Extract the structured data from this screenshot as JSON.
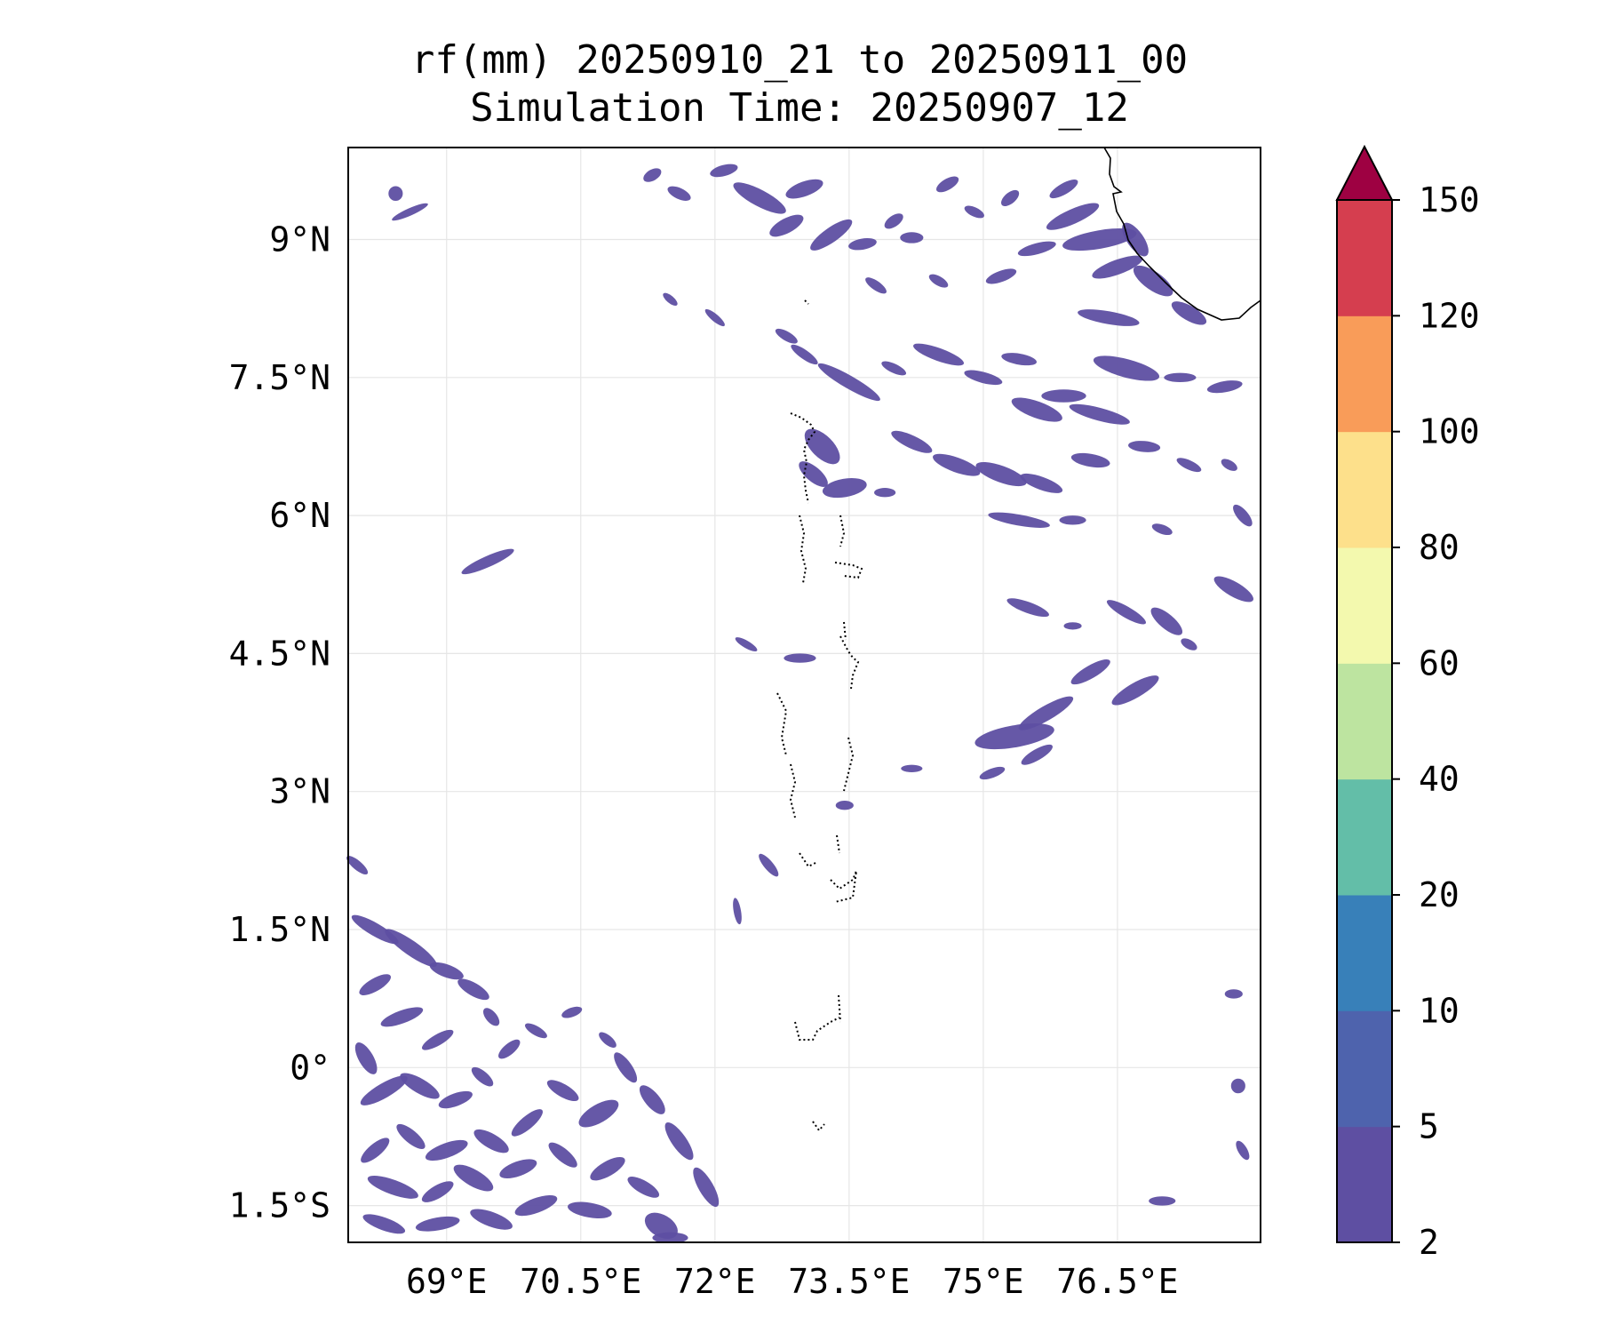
{
  "title": {
    "line1": "rf(mm) 20250910_21 to 20250911_00",
    "line2": "Simulation Time: 20250907_12"
  },
  "map": {
    "lon_range": [
      67.9,
      78.1
    ],
    "lat_range": [
      -1.9,
      10.0
    ],
    "gridlines": true,
    "xticks": [
      {
        "value": 69.0,
        "label": "69°E"
      },
      {
        "value": 70.5,
        "label": "70.5°E"
      },
      {
        "value": 72.0,
        "label": "72°E"
      },
      {
        "value": 73.5,
        "label": "73.5°E"
      },
      {
        "value": 75.0,
        "label": "75°E"
      },
      {
        "value": 76.5,
        "label": "76.5°E"
      }
    ],
    "yticks": [
      {
        "value": 9.0,
        "label": "9°N"
      },
      {
        "value": 7.5,
        "label": "7.5°N"
      },
      {
        "value": 6.0,
        "label": "6°N"
      },
      {
        "value": 4.5,
        "label": "4.5°N"
      },
      {
        "value": 3.0,
        "label": "3°N"
      },
      {
        "value": 1.5,
        "label": "1.5°N"
      },
      {
        "value": 0.0,
        "label": "0°"
      },
      {
        "value": -1.5,
        "label": "1.5°S"
      }
    ],
    "rain_fill_color": "#5e4fa2",
    "rain_patches": [
      {
        "lon": 69.46,
        "lat": 5.5,
        "rx": 0.32,
        "ry": 0.06,
        "rot": -24
      },
      {
        "lon": 68.43,
        "lat": 9.5,
        "rx": 0.08,
        "ry": 0.08,
        "rot": 0
      },
      {
        "lon": 68.59,
        "lat": 9.3,
        "rx": 0.22,
        "ry": 0.04,
        "rot": -24
      },
      {
        "lon": 71.3,
        "lat": 9.7,
        "rx": 0.11,
        "ry": 0.06,
        "rot": -30
      },
      {
        "lon": 71.6,
        "lat": 9.5,
        "rx": 0.14,
        "ry": 0.06,
        "rot": 25
      },
      {
        "lon": 72.1,
        "lat": 9.75,
        "rx": 0.16,
        "ry": 0.06,
        "rot": -15
      },
      {
        "lon": 72.5,
        "lat": 9.45,
        "rx": 0.33,
        "ry": 0.09,
        "rot": 28
      },
      {
        "lon": 73.0,
        "lat": 9.55,
        "rx": 0.22,
        "ry": 0.08,
        "rot": -20
      },
      {
        "lon": 72.8,
        "lat": 9.15,
        "rx": 0.21,
        "ry": 0.08,
        "rot": -28
      },
      {
        "lon": 73.3,
        "lat": 9.05,
        "rx": 0.28,
        "ry": 0.08,
        "rot": -35
      },
      {
        "lon": 73.65,
        "lat": 8.95,
        "rx": 0.16,
        "ry": 0.06,
        "rot": -10
      },
      {
        "lon": 74.0,
        "lat": 9.2,
        "rx": 0.12,
        "ry": 0.06,
        "rot": -35
      },
      {
        "lon": 74.2,
        "lat": 9.02,
        "rx": 0.13,
        "ry": 0.06,
        "rot": 0
      },
      {
        "lon": 74.6,
        "lat": 9.6,
        "rx": 0.14,
        "ry": 0.06,
        "rot": -30
      },
      {
        "lon": 74.9,
        "lat": 9.3,
        "rx": 0.12,
        "ry": 0.05,
        "rot": 25
      },
      {
        "lon": 75.3,
        "lat": 9.45,
        "rx": 0.12,
        "ry": 0.06,
        "rot": -40
      },
      {
        "lon": 75.9,
        "lat": 9.55,
        "rx": 0.18,
        "ry": 0.06,
        "rot": -30
      },
      {
        "lon": 76.0,
        "lat": 9.25,
        "rx": 0.32,
        "ry": 0.08,
        "rot": -24
      },
      {
        "lon": 76.3,
        "lat": 9.0,
        "rx": 0.42,
        "ry": 0.1,
        "rot": -10
      },
      {
        "lon": 76.5,
        "lat": 8.7,
        "rx": 0.3,
        "ry": 0.08,
        "rot": -20
      },
      {
        "lon": 76.7,
        "lat": 9.0,
        "rx": 0.22,
        "ry": 0.09,
        "rot": 55
      },
      {
        "lon": 76.9,
        "lat": 8.55,
        "rx": 0.26,
        "ry": 0.1,
        "rot": 35
      },
      {
        "lon": 77.3,
        "lat": 8.2,
        "rx": 0.22,
        "ry": 0.08,
        "rot": 30
      },
      {
        "lon": 76.4,
        "lat": 8.15,
        "rx": 0.35,
        "ry": 0.07,
        "rot": 10
      },
      {
        "lon": 75.6,
        "lat": 8.9,
        "rx": 0.22,
        "ry": 0.06,
        "rot": -15
      },
      {
        "lon": 75.2,
        "lat": 8.6,
        "rx": 0.18,
        "ry": 0.06,
        "rot": -20
      },
      {
        "lon": 74.5,
        "lat": 8.55,
        "rx": 0.12,
        "ry": 0.05,
        "rot": 30
      },
      {
        "lon": 73.8,
        "lat": 8.5,
        "rx": 0.14,
        "ry": 0.05,
        "rot": 35
      },
      {
        "lon": 71.5,
        "lat": 8.35,
        "rx": 0.1,
        "ry": 0.04,
        "rot": 40
      },
      {
        "lon": 72.0,
        "lat": 8.15,
        "rx": 0.14,
        "ry": 0.04,
        "rot": 40
      },
      {
        "lon": 72.8,
        "lat": 7.95,
        "rx": 0.14,
        "ry": 0.05,
        "rot": 30
      },
      {
        "lon": 73.0,
        "lat": 7.75,
        "rx": 0.18,
        "ry": 0.05,
        "rot": 35
      },
      {
        "lon": 73.5,
        "lat": 7.45,
        "rx": 0.4,
        "ry": 0.07,
        "rot": 30
      },
      {
        "lon": 74.0,
        "lat": 7.6,
        "rx": 0.15,
        "ry": 0.05,
        "rot": 25
      },
      {
        "lon": 74.5,
        "lat": 7.75,
        "rx": 0.3,
        "ry": 0.07,
        "rot": 20
      },
      {
        "lon": 75.0,
        "lat": 7.5,
        "rx": 0.22,
        "ry": 0.06,
        "rot": 15
      },
      {
        "lon": 75.4,
        "lat": 7.7,
        "rx": 0.2,
        "ry": 0.06,
        "rot": 10
      },
      {
        "lon": 75.6,
        "lat": 7.15,
        "rx": 0.3,
        "ry": 0.09,
        "rot": 20
      },
      {
        "lon": 75.9,
        "lat": 7.3,
        "rx": 0.25,
        "ry": 0.07,
        "rot": 0
      },
      {
        "lon": 76.3,
        "lat": 7.1,
        "rx": 0.35,
        "ry": 0.07,
        "rot": 15
      },
      {
        "lon": 76.6,
        "lat": 7.6,
        "rx": 0.38,
        "ry": 0.1,
        "rot": 15
      },
      {
        "lon": 77.2,
        "lat": 7.5,
        "rx": 0.18,
        "ry": 0.05,
        "rot": 0
      },
      {
        "lon": 77.7,
        "lat": 7.4,
        "rx": 0.2,
        "ry": 0.06,
        "rot": -10
      },
      {
        "lon": 73.2,
        "lat": 6.75,
        "rx": 0.25,
        "ry": 0.12,
        "rot": 45
      },
      {
        "lon": 73.1,
        "lat": 6.45,
        "rx": 0.2,
        "ry": 0.08,
        "rot": 40
      },
      {
        "lon": 73.45,
        "lat": 6.3,
        "rx": 0.25,
        "ry": 0.1,
        "rot": -10
      },
      {
        "lon": 73.9,
        "lat": 6.25,
        "rx": 0.12,
        "ry": 0.05,
        "rot": 0
      },
      {
        "lon": 74.2,
        "lat": 6.8,
        "rx": 0.25,
        "ry": 0.07,
        "rot": 25
      },
      {
        "lon": 74.7,
        "lat": 6.55,
        "rx": 0.28,
        "ry": 0.08,
        "rot": 20
      },
      {
        "lon": 75.2,
        "lat": 6.45,
        "rx": 0.3,
        "ry": 0.09,
        "rot": 20
      },
      {
        "lon": 75.65,
        "lat": 6.35,
        "rx": 0.25,
        "ry": 0.07,
        "rot": 20
      },
      {
        "lon": 76.2,
        "lat": 6.6,
        "rx": 0.22,
        "ry": 0.07,
        "rot": 10
      },
      {
        "lon": 76.8,
        "lat": 6.75,
        "rx": 0.18,
        "ry": 0.06,
        "rot": 5
      },
      {
        "lon": 77.3,
        "lat": 6.55,
        "rx": 0.15,
        "ry": 0.05,
        "rot": 25
      },
      {
        "lon": 77.75,
        "lat": 6.55,
        "rx": 0.1,
        "ry": 0.05,
        "rot": 30
      },
      {
        "lon": 75.4,
        "lat": 5.95,
        "rx": 0.35,
        "ry": 0.06,
        "rot": 10
      },
      {
        "lon": 76.0,
        "lat": 5.95,
        "rx": 0.15,
        "ry": 0.05,
        "rot": 0
      },
      {
        "lon": 77.0,
        "lat": 5.85,
        "rx": 0.12,
        "ry": 0.05,
        "rot": 20
      },
      {
        "lon": 77.9,
        "lat": 6.0,
        "rx": 0.15,
        "ry": 0.06,
        "rot": 50
      },
      {
        "lon": 77.8,
        "lat": 5.2,
        "rx": 0.25,
        "ry": 0.08,
        "rot": 30
      },
      {
        "lon": 75.5,
        "lat": 5.0,
        "rx": 0.25,
        "ry": 0.06,
        "rot": 20
      },
      {
        "lon": 76.0,
        "lat": 4.8,
        "rx": 0.1,
        "ry": 0.04,
        "rot": 0
      },
      {
        "lon": 76.6,
        "lat": 4.95,
        "rx": 0.25,
        "ry": 0.06,
        "rot": 30
      },
      {
        "lon": 77.05,
        "lat": 4.85,
        "rx": 0.22,
        "ry": 0.08,
        "rot": 40
      },
      {
        "lon": 77.3,
        "lat": 4.6,
        "rx": 0.1,
        "ry": 0.05,
        "rot": 30
      },
      {
        "lon": 76.2,
        "lat": 4.3,
        "rx": 0.25,
        "ry": 0.07,
        "rot": -30
      },
      {
        "lon": 76.7,
        "lat": 4.1,
        "rx": 0.3,
        "ry": 0.08,
        "rot": -30
      },
      {
        "lon": 75.7,
        "lat": 3.85,
        "rx": 0.35,
        "ry": 0.08,
        "rot": -30
      },
      {
        "lon": 75.35,
        "lat": 3.6,
        "rx": 0.45,
        "ry": 0.12,
        "rot": -10
      },
      {
        "lon": 75.1,
        "lat": 3.2,
        "rx": 0.15,
        "ry": 0.05,
        "rot": -20
      },
      {
        "lon": 75.6,
        "lat": 3.4,
        "rx": 0.2,
        "ry": 0.06,
        "rot": -30
      },
      {
        "lon": 73.45,
        "lat": 2.85,
        "rx": 0.1,
        "ry": 0.05,
        "rot": 0
      },
      {
        "lon": 74.2,
        "lat": 3.25,
        "rx": 0.12,
        "ry": 0.04,
        "rot": 0
      },
      {
        "lon": 72.35,
        "lat": 4.6,
        "rx": 0.14,
        "ry": 0.04,
        "rot": 30
      },
      {
        "lon": 72.95,
        "lat": 4.45,
        "rx": 0.18,
        "ry": 0.05,
        "rot": 0
      },
      {
        "lon": 72.6,
        "lat": 2.2,
        "rx": 0.16,
        "ry": 0.05,
        "rot": 50
      },
      {
        "lon": 72.25,
        "lat": 1.7,
        "rx": 0.15,
        "ry": 0.04,
        "rot": 80
      },
      {
        "lon": 68.0,
        "lat": 2.2,
        "rx": 0.15,
        "ry": 0.05,
        "rot": 40
      },
      {
        "lon": 77.0,
        "lat": -1.45,
        "rx": 0.15,
        "ry": 0.05,
        "rot": 0
      },
      {
        "lon": 77.9,
        "lat": -0.9,
        "rx": 0.12,
        "ry": 0.05,
        "rot": 60
      },
      {
        "lon": 77.85,
        "lat": -0.2,
        "rx": 0.08,
        "ry": 0.08,
        "rot": 0
      },
      {
        "lon": 77.8,
        "lat": 0.8,
        "rx": 0.1,
        "ry": 0.05,
        "rot": 0
      },
      {
        "lon": 71.4,
        "lat": -1.72,
        "rx": 0.2,
        "ry": 0.12,
        "rot": 30
      },
      {
        "lon": 68.2,
        "lat": 1.5,
        "rx": 0.3,
        "ry": 0.07,
        "rot": 30
      },
      {
        "lon": 68.6,
        "lat": 1.3,
        "rx": 0.35,
        "ry": 0.08,
        "rot": 35
      },
      {
        "lon": 69.0,
        "lat": 1.05,
        "rx": 0.2,
        "ry": 0.07,
        "rot": 20
      },
      {
        "lon": 69.3,
        "lat": 0.85,
        "rx": 0.2,
        "ry": 0.07,
        "rot": 30
      },
      {
        "lon": 69.5,
        "lat": 0.55,
        "rx": 0.12,
        "ry": 0.06,
        "rot": 50
      },
      {
        "lon": 68.2,
        "lat": 0.9,
        "rx": 0.2,
        "ry": 0.07,
        "rot": -30
      },
      {
        "lon": 68.5,
        "lat": 0.55,
        "rx": 0.25,
        "ry": 0.07,
        "rot": -20
      },
      {
        "lon": 68.9,
        "lat": 0.3,
        "rx": 0.2,
        "ry": 0.06,
        "rot": -30
      },
      {
        "lon": 68.1,
        "lat": 0.1,
        "rx": 0.2,
        "ry": 0.08,
        "rot": 60
      },
      {
        "lon": 68.3,
        "lat": -0.25,
        "rx": 0.3,
        "ry": 0.08,
        "rot": -30
      },
      {
        "lon": 68.7,
        "lat": -0.2,
        "rx": 0.25,
        "ry": 0.08,
        "rot": 30
      },
      {
        "lon": 69.1,
        "lat": -0.35,
        "rx": 0.2,
        "ry": 0.07,
        "rot": -20
      },
      {
        "lon": 69.4,
        "lat": -0.1,
        "rx": 0.15,
        "ry": 0.06,
        "rot": 40
      },
      {
        "lon": 69.7,
        "lat": 0.2,
        "rx": 0.15,
        "ry": 0.06,
        "rot": -40
      },
      {
        "lon": 70.0,
        "lat": 0.4,
        "rx": 0.14,
        "ry": 0.05,
        "rot": 30
      },
      {
        "lon": 70.4,
        "lat": 0.6,
        "rx": 0.12,
        "ry": 0.05,
        "rot": -20
      },
      {
        "lon": 70.8,
        "lat": 0.3,
        "rx": 0.12,
        "ry": 0.05,
        "rot": 40
      },
      {
        "lon": 71.0,
        "lat": 0.0,
        "rx": 0.2,
        "ry": 0.07,
        "rot": 55
      },
      {
        "lon": 71.3,
        "lat": -0.35,
        "rx": 0.2,
        "ry": 0.08,
        "rot": 50
      },
      {
        "lon": 71.6,
        "lat": -0.8,
        "rx": 0.25,
        "ry": 0.08,
        "rot": 55
      },
      {
        "lon": 71.9,
        "lat": -1.3,
        "rx": 0.25,
        "ry": 0.08,
        "rot": 60
      },
      {
        "lon": 70.7,
        "lat": -0.5,
        "rx": 0.25,
        "ry": 0.1,
        "rot": -30
      },
      {
        "lon": 70.3,
        "lat": -0.25,
        "rx": 0.2,
        "ry": 0.07,
        "rot": 30
      },
      {
        "lon": 69.9,
        "lat": -0.6,
        "rx": 0.22,
        "ry": 0.07,
        "rot": -40
      },
      {
        "lon": 69.5,
        "lat": -0.8,
        "rx": 0.22,
        "ry": 0.08,
        "rot": 30
      },
      {
        "lon": 69.0,
        "lat": -0.9,
        "rx": 0.25,
        "ry": 0.08,
        "rot": -20
      },
      {
        "lon": 68.6,
        "lat": -0.75,
        "rx": 0.2,
        "ry": 0.07,
        "rot": 40
      },
      {
        "lon": 68.2,
        "lat": -0.9,
        "rx": 0.2,
        "ry": 0.07,
        "rot": -40
      },
      {
        "lon": 68.4,
        "lat": -1.3,
        "rx": 0.3,
        "ry": 0.08,
        "rot": 20
      },
      {
        "lon": 68.9,
        "lat": -1.35,
        "rx": 0.2,
        "ry": 0.07,
        "rot": -30
      },
      {
        "lon": 69.3,
        "lat": -1.2,
        "rx": 0.25,
        "ry": 0.09,
        "rot": 30
      },
      {
        "lon": 69.8,
        "lat": -1.1,
        "rx": 0.22,
        "ry": 0.08,
        "rot": -20
      },
      {
        "lon": 70.3,
        "lat": -0.95,
        "rx": 0.2,
        "ry": 0.07,
        "rot": 40
      },
      {
        "lon": 70.8,
        "lat": -1.1,
        "rx": 0.22,
        "ry": 0.08,
        "rot": -30
      },
      {
        "lon": 71.2,
        "lat": -1.3,
        "rx": 0.2,
        "ry": 0.07,
        "rot": 30
      },
      {
        "lon": 70.6,
        "lat": -1.55,
        "rx": 0.25,
        "ry": 0.08,
        "rot": 10
      },
      {
        "lon": 70.0,
        "lat": -1.5,
        "rx": 0.25,
        "ry": 0.08,
        "rot": -20
      },
      {
        "lon": 69.5,
        "lat": -1.65,
        "rx": 0.25,
        "ry": 0.08,
        "rot": 20
      },
      {
        "lon": 68.9,
        "lat": -1.7,
        "rx": 0.25,
        "ry": 0.07,
        "rot": -10
      },
      {
        "lon": 68.3,
        "lat": -1.7,
        "rx": 0.25,
        "ry": 0.07,
        "rot": 20
      },
      {
        "lon": 71.5,
        "lat": -1.85,
        "rx": 0.2,
        "ry": 0.06,
        "rot": 0
      }
    ],
    "coastline_color": "#000000",
    "island_outline_style": "dotted"
  },
  "colorbar": {
    "colors": [
      "#5e4fa2",
      "#4e63ad",
      "#3880b9",
      "#63bea8",
      "#bde4a0",
      "#f3f9ae",
      "#fde08b",
      "#f99c59",
      "#d53e4f"
    ],
    "extend_color": "#9e0142",
    "extend": "max",
    "levels": [
      "2",
      "5",
      "10",
      "20",
      "40",
      "60",
      "80",
      "100",
      "120",
      "150"
    ]
  }
}
